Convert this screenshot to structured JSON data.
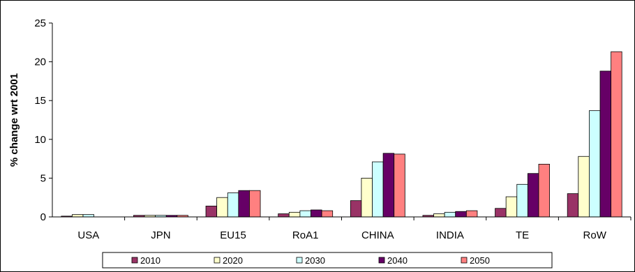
{
  "chart_data": {
    "type": "bar",
    "title": "",
    "xlabel": "",
    "ylabel": "% change wrt 2001",
    "ylim": [
      0,
      25
    ],
    "yticks": [
      0,
      5,
      10,
      15,
      20,
      25
    ],
    "grid": false,
    "legend_position": "bottom",
    "categories": [
      "USA",
      "JPN",
      "EU15",
      "RoA1",
      "CHINA",
      "INDIA",
      "TE",
      "RoW"
    ],
    "series": [
      {
        "name": "2010",
        "color": "#993366",
        "values": [
          0.1,
          0.2,
          1.4,
          0.4,
          2.1,
          0.2,
          1.1,
          3.0
        ]
      },
      {
        "name": "2020",
        "color": "#FFFFCC",
        "values": [
          0.3,
          0.2,
          2.5,
          0.6,
          5.0,
          0.4,
          2.6,
          7.8
        ]
      },
      {
        "name": "2030",
        "color": "#CCFFFF",
        "values": [
          0.3,
          0.2,
          3.1,
          0.8,
          7.1,
          0.6,
          4.2,
          13.7
        ]
      },
      {
        "name": "2040",
        "color": "#660066",
        "values": [
          0.0,
          0.2,
          3.4,
          0.9,
          8.2,
          0.7,
          5.6,
          18.8
        ]
      },
      {
        "name": "2050",
        "color": "#FF8080",
        "values": [
          0.0,
          0.2,
          3.4,
          0.8,
          8.1,
          0.8,
          6.8,
          21.3
        ]
      }
    ]
  }
}
